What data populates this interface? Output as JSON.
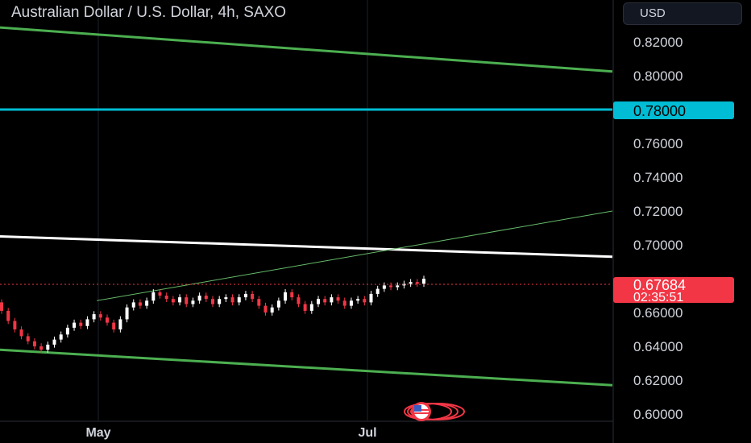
{
  "header": {
    "title": "Australian Dollar / U.S. Dollar, 4h, SAXO",
    "currency_button": "USD"
  },
  "colors": {
    "background": "#000000",
    "channel_line": "#4caf50",
    "level_line": "#00bcd4",
    "resistance_line": "#ffffff",
    "trend_line": "#66bb6a",
    "up_candle": "#ffffff",
    "down_candle": "#f23645",
    "price_label": "#f23645",
    "level_label": "#00bcd4"
  },
  "price_label": {
    "price": "0.67684",
    "countdown": "02:35:51"
  },
  "level_label": "0.78000",
  "chart_data": {
    "type": "candlestick",
    "symbol": "Australian Dollar / U.S. Dollar",
    "timeframe": "4h",
    "exchange": "SAXO",
    "currency": "USD",
    "ylim": [
      0.595,
      0.83
    ],
    "y_ticks": [
      "0.82000",
      "0.80000",
      "0.76000",
      "0.74000",
      "0.72000",
      "0.70000",
      "0.66000",
      "0.64000",
      "0.62000",
      "0.60000"
    ],
    "x_ticks": [
      "May",
      "Jul"
    ],
    "last_price": 0.67684,
    "horizontal_level": 0.78,
    "candles_approx": [
      [
        0.666,
        0.661
      ],
      [
        0.661,
        0.655
      ],
      [
        0.655,
        0.65
      ],
      [
        0.65,
        0.646
      ],
      [
        0.646,
        0.643
      ],
      [
        0.643,
        0.64
      ],
      [
        0.64,
        0.638
      ],
      [
        0.638,
        0.641
      ],
      [
        0.641,
        0.644
      ],
      [
        0.644,
        0.647
      ],
      [
        0.647,
        0.651
      ],
      [
        0.651,
        0.654
      ],
      [
        0.654,
        0.652
      ],
      [
        0.652,
        0.656
      ],
      [
        0.656,
        0.659
      ],
      [
        0.659,
        0.657
      ],
      [
        0.657,
        0.654
      ],
      [
        0.654,
        0.65
      ],
      [
        0.65,
        0.656
      ],
      [
        0.656,
        0.663
      ],
      [
        0.663,
        0.666
      ],
      [
        0.666,
        0.664
      ],
      [
        0.664,
        0.667
      ],
      [
        0.667,
        0.672
      ],
      [
        0.672,
        0.67
      ],
      [
        0.67,
        0.668
      ],
      [
        0.668,
        0.666
      ],
      [
        0.666,
        0.669
      ],
      [
        0.669,
        0.665
      ],
      [
        0.665,
        0.667
      ],
      [
        0.667,
        0.67
      ],
      [
        0.67,
        0.668
      ],
      [
        0.668,
        0.665
      ],
      [
        0.665,
        0.668
      ],
      [
        0.668,
        0.669
      ],
      [
        0.669,
        0.666
      ],
      [
        0.666,
        0.669
      ],
      [
        0.669,
        0.671
      ],
      [
        0.671,
        0.668
      ],
      [
        0.668,
        0.664
      ],
      [
        0.664,
        0.66
      ],
      [
        0.66,
        0.663
      ],
      [
        0.663,
        0.667
      ],
      [
        0.667,
        0.672
      ],
      [
        0.672,
        0.669
      ],
      [
        0.669,
        0.665
      ],
      [
        0.665,
        0.661
      ],
      [
        0.661,
        0.665
      ],
      [
        0.665,
        0.668
      ],
      [
        0.668,
        0.666
      ],
      [
        0.666,
        0.669
      ],
      [
        0.669,
        0.667
      ],
      [
        0.667,
        0.664
      ],
      [
        0.664,
        0.667
      ],
      [
        0.667,
        0.668
      ],
      [
        0.668,
        0.666
      ],
      [
        0.666,
        0.671
      ],
      [
        0.671,
        0.674
      ],
      [
        0.674,
        0.676
      ],
      [
        0.676,
        0.675
      ],
      [
        0.675,
        0.676
      ],
      [
        0.676,
        0.677
      ],
      [
        0.677,
        0.678
      ],
      [
        0.678,
        0.677
      ],
      [
        0.677,
        0.68
      ]
    ],
    "lines": [
      {
        "name": "",
        "color": "#4caf50",
        "x0": 0.0,
        "y0": 0.8285,
        "x1": 1.0,
        "y1": 0.8025
      },
      {
        "name": "",
        "color": "#00bcd4",
        "x0": 0.0,
        "y0": 0.78,
        "x1": 1.0,
        "y1": 0.78
      },
      {
        "name": "",
        "color": "#ffffff",
        "x0": 0.0,
        "y0": 0.705,
        "x1": 1.0,
        "y1": 0.693
      },
      {
        "name": "",
        "color": "#66bb6a",
        "x0": 0.158,
        "y0": 0.667,
        "x1": 1.0,
        "y1": 0.72
      },
      {
        "name": "",
        "color": "#4caf50",
        "x0": 0.0,
        "y0": 0.638,
        "x1": 1.0,
        "y1": 0.617
      }
    ]
  }
}
